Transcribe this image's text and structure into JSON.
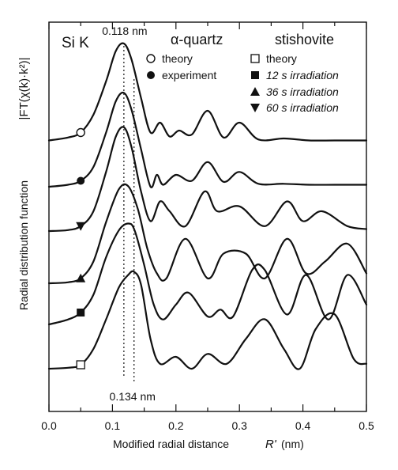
{
  "chart_data": {
    "type": "line",
    "panel_label": "Si K",
    "xlabel": "Modified radial distance",
    "xlabel_symbol": "R'",
    "xlabel_unit": "(nm)",
    "ylabel_main": "Radial distribution function",
    "ylabel_formula": "|FT(χ(k)·k²)|",
    "xlim": [
      0.0,
      0.5
    ],
    "x_ticks": [
      "0.0",
      "0.1",
      "0.2",
      "0.3",
      "0.4",
      "0.5"
    ],
    "x_tick_values": [
      0.0,
      0.1,
      0.2,
      0.3,
      0.4,
      0.5
    ],
    "reference_lines": [
      {
        "x": 0.118,
        "label": "0.118 nm"
      },
      {
        "x": 0.134,
        "label": "0.134 nm"
      }
    ],
    "legend": {
      "quartz_title": "α-quartz",
      "stishovite_title": "stishovite",
      "entries": [
        {
          "marker": "circle-open",
          "label": "theory",
          "style": "normal"
        },
        {
          "marker": "circle-filled",
          "label": "experiment",
          "style": "normal"
        },
        {
          "marker": "square-open",
          "label": "theory",
          "style": "normal"
        },
        {
          "marker": "square-filled",
          "label": "12 s irradiation",
          "style": "italic"
        },
        {
          "marker": "triangle-up",
          "label": "36 s irradiation",
          "style": "italic"
        },
        {
          "marker": "triangle-down",
          "label": "60 s irradiation",
          "style": "italic"
        }
      ]
    },
    "series": [
      {
        "marker": "circle-open",
        "x": [
          0.0,
          0.03,
          0.05,
          0.07,
          0.09,
          0.105,
          0.118,
          0.13,
          0.145,
          0.16,
          0.175,
          0.19,
          0.205,
          0.225,
          0.25,
          0.275,
          0.3,
          0.33,
          0.37,
          0.41,
          0.45,
          0.5
        ],
        "y": [
          0.02,
          0.05,
          0.1,
          0.28,
          0.62,
          0.92,
          1.0,
          0.84,
          0.45,
          0.1,
          0.2,
          0.06,
          0.12,
          0.08,
          0.32,
          0.05,
          0.2,
          0.03,
          0.04,
          0.02,
          0.02,
          0.02
        ]
      },
      {
        "marker": "circle-filled",
        "x": [
          0.0,
          0.03,
          0.05,
          0.07,
          0.09,
          0.105,
          0.118,
          0.13,
          0.145,
          0.16,
          0.17,
          0.18,
          0.2,
          0.225,
          0.25,
          0.275,
          0.3,
          0.33,
          0.37,
          0.41,
          0.45,
          0.5
        ],
        "y": [
          0.0,
          0.02,
          0.06,
          0.2,
          0.55,
          0.86,
          0.95,
          0.78,
          0.38,
          0.0,
          0.12,
          0.02,
          0.12,
          0.06,
          0.25,
          0.05,
          0.15,
          0.03,
          0.03,
          0.02,
          0.02,
          0.02
        ]
      },
      {
        "marker": "triangle-down",
        "x": [
          0.0,
          0.03,
          0.05,
          0.07,
          0.09,
          0.105,
          0.118,
          0.13,
          0.145,
          0.16,
          0.175,
          0.19,
          0.215,
          0.245,
          0.265,
          0.3,
          0.34,
          0.375,
          0.4,
          0.43,
          0.47,
          0.5
        ],
        "y": [
          0.0,
          0.01,
          0.05,
          0.2,
          0.6,
          0.95,
          1.05,
          0.85,
          0.4,
          0.1,
          0.3,
          0.2,
          0.05,
          0.4,
          0.2,
          0.25,
          0.05,
          0.3,
          0.1,
          0.2,
          0.05,
          0.02
        ]
      },
      {
        "marker": "triangle-up",
        "x": [
          0.0,
          0.03,
          0.05,
          0.07,
          0.09,
          0.11,
          0.125,
          0.14,
          0.155,
          0.17,
          0.185,
          0.215,
          0.25,
          0.275,
          0.31,
          0.34,
          0.375,
          0.405,
          0.435,
          0.47,
          0.5
        ],
        "y": [
          0.0,
          0.01,
          0.05,
          0.22,
          0.62,
          0.95,
          0.98,
          0.75,
          0.35,
          0.1,
          0.05,
          0.45,
          0.05,
          0.3,
          0.3,
          0.05,
          0.45,
          0.1,
          0.22,
          0.4,
          0.1
        ]
      },
      {
        "marker": "square-filled",
        "x": [
          0.0,
          0.03,
          0.05,
          0.07,
          0.09,
          0.11,
          0.125,
          0.135,
          0.15,
          0.165,
          0.18,
          0.2,
          0.22,
          0.25,
          0.27,
          0.29,
          0.32,
          0.34,
          0.375,
          0.405,
          0.44,
          0.47,
          0.5
        ],
        "y": [
          0.0,
          0.05,
          0.12,
          0.3,
          0.68,
          0.95,
          1.02,
          0.95,
          0.6,
          0.2,
          0.05,
          0.2,
          0.32,
          0.08,
          0.15,
          0.08,
          0.55,
          0.55,
          0.1,
          0.5,
          0.05,
          0.5,
          0.2
        ]
      },
      {
        "marker": "square-open",
        "x": [
          0.0,
          0.03,
          0.05,
          0.07,
          0.09,
          0.11,
          0.125,
          0.134,
          0.145,
          0.16,
          0.175,
          0.2,
          0.225,
          0.25,
          0.28,
          0.31,
          0.34,
          0.37,
          0.395,
          0.42,
          0.45,
          0.48,
          0.5
        ],
        "y": [
          0.0,
          0.01,
          0.04,
          0.2,
          0.5,
          0.82,
          0.95,
          0.98,
          0.85,
          0.3,
          0.05,
          0.12,
          0.0,
          0.15,
          0.05,
          0.3,
          0.5,
          0.2,
          0.0,
          0.4,
          0.55,
          0.1,
          0.05
        ]
      }
    ]
  }
}
